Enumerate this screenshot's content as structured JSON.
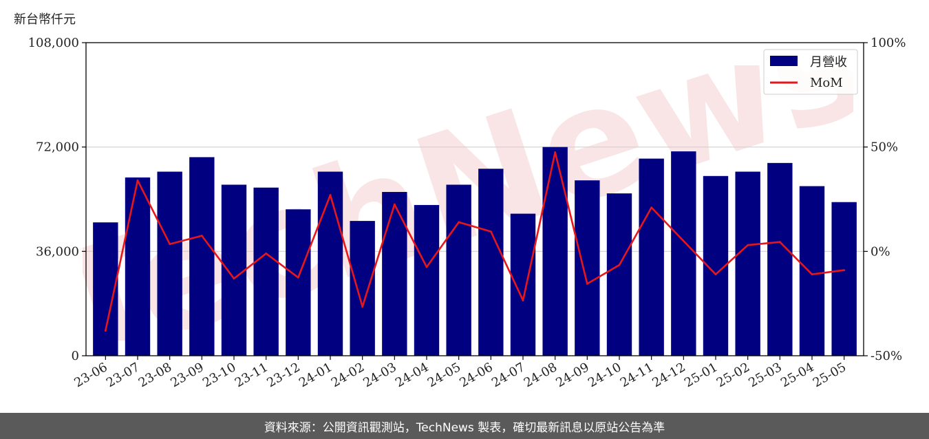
{
  "chart_data": {
    "type": "bar",
    "y_unit_label": "新台幣仟元",
    "categories": [
      "23-06",
      "23-07",
      "23-08",
      "23-09",
      "23-10",
      "23-11",
      "23-12",
      "24-01",
      "24-02",
      "24-03",
      "24-04",
      "24-05",
      "24-06",
      "24-07",
      "24-08",
      "24-09",
      "24-10",
      "24-11",
      "24-12",
      "25-01",
      "25-02",
      "25-03",
      "25-04",
      "25-05"
    ],
    "series": [
      {
        "name": "月營收",
        "axis": "left",
        "color": "#000080",
        "values": [
          46000,
          61500,
          63500,
          68500,
          59000,
          58000,
          50500,
          63500,
          46500,
          56500,
          52000,
          59000,
          64500,
          49000,
          72000,
          60500,
          56000,
          68000,
          70500,
          62000,
          63500,
          66500,
          58500,
          53000
        ]
      },
      {
        "name": "MoM",
        "axis": "right",
        "color": "#e8161b",
        "values": [
          -38,
          34,
          3.5,
          7.5,
          -13,
          -1,
          -12.5,
          27,
          -26.5,
          22.5,
          -7.5,
          14,
          9.5,
          -23.5,
          47.5,
          -15.5,
          -6.5,
          21,
          5,
          -11,
          3,
          4.5,
          -11,
          -9
        ]
      }
    ],
    "left_axis": {
      "ylim": [
        0,
        108000
      ],
      "ticks": [
        "0",
        "36,000",
        "72,000",
        "108,000"
      ]
    },
    "right_axis": {
      "ylim": [
        -50,
        100
      ],
      "ticks": [
        "-50%",
        "0%",
        "50%",
        "100%"
      ]
    },
    "grid": "horizontal",
    "legend_position": "top-right"
  },
  "watermark_text": "TechNews",
  "footer_text": "資料來源：公開資訊觀測站，TechNews 製表，確切最新訊息以原站公告為準"
}
